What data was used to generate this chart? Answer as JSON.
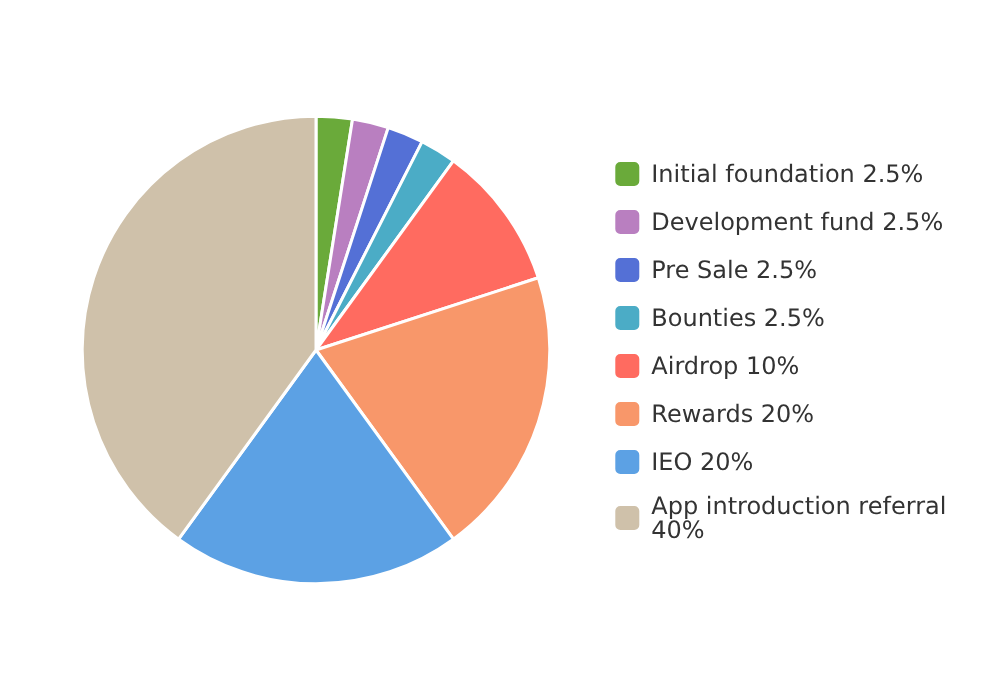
{
  "chart_data": {
    "type": "pie",
    "categories": [
      "Initial foundation 2.5%",
      "Development fund 2.5%",
      "Pre Sale 2.5%",
      "Bounties 2.5%",
      "Airdrop 10%",
      "Rewards 20%",
      "IEO 20%",
      "App introduction referral 40%"
    ],
    "values": [
      2.5,
      2.5,
      2.5,
      2.5,
      10,
      20,
      20,
      40
    ],
    "colors": [
      "#6aaa3a",
      "#b97fc0",
      "#5470d6",
      "#4bacc6",
      "#ff6b60",
      "#f8976a",
      "#5ca1e4",
      "#cfc1aa"
    ],
    "legend": "right"
  }
}
